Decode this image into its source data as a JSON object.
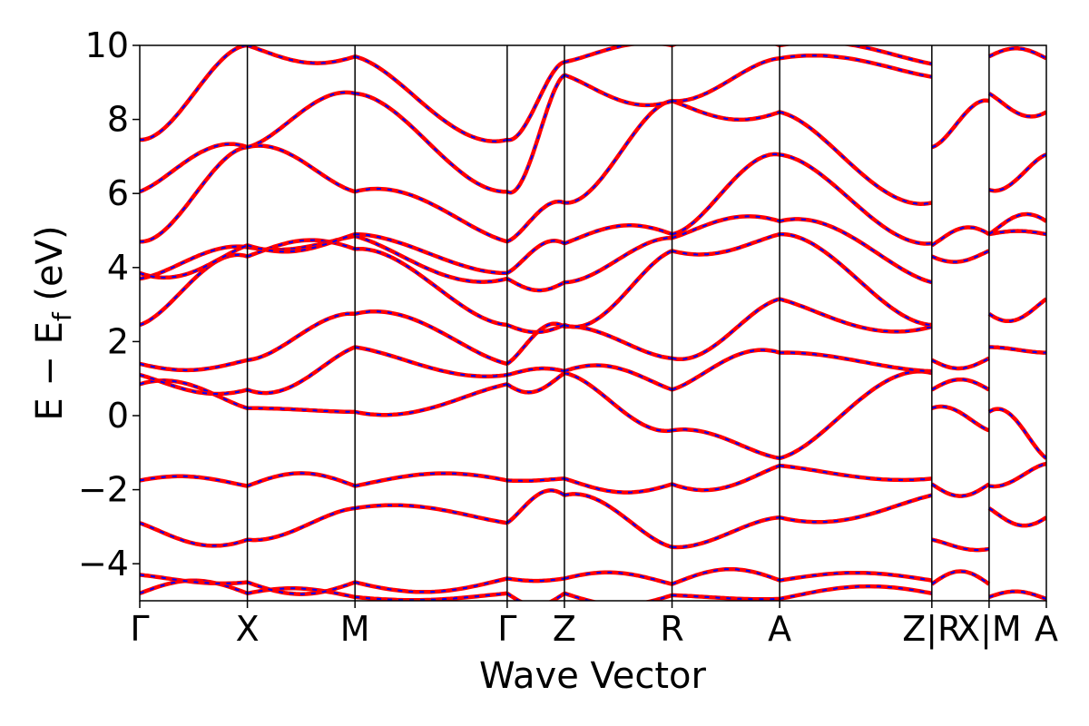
{
  "chart_data": {
    "type": "line",
    "title": "",
    "xlabel": "Wave Vector",
    "ylabel": "E − E_f (eV)",
    "ylabel_parts": {
      "main": "E − E",
      "sub": "f",
      "unit": " (eV)"
    },
    "ylim": [
      -5,
      10
    ],
    "yticks": [
      -4,
      -2,
      0,
      2,
      4,
      6,
      8,
      10
    ],
    "ytick_labels": [
      "−4",
      "−2",
      "0",
      "2",
      "4",
      "6",
      "8",
      "10"
    ],
    "grid": false,
    "legend": "none",
    "kpath": [
      {
        "label": "Γ",
        "x": 0.0
      },
      {
        "label": "X",
        "x": 0.5
      },
      {
        "label": "M",
        "x": 1.0
      },
      {
        "label": "Γ",
        "x": 1.707
      },
      {
        "label": "Z",
        "x": 1.973
      },
      {
        "label": "R",
        "x": 2.473
      },
      {
        "label": "A",
        "x": 2.973
      },
      {
        "label": "Z|R",
        "x": 3.68
      },
      {
        "label": "X|M",
        "x": 3.946
      },
      {
        "label": "A",
        "x": 4.212
      }
    ],
    "segments": [
      {
        "from": "Γ",
        "to": "X",
        "x0": 0.0,
        "x1": 0.5,
        "start": [
          -4.8,
          -4.3,
          -2.9,
          -1.75,
          0.85,
          1.1,
          1.4,
          2.45,
          3.7,
          3.85,
          4.7,
          6.05,
          7.45
        ],
        "end": [
          -4.8,
          -4.5,
          -3.35,
          -1.9,
          0.2,
          0.7,
          1.5,
          4.3,
          4.55,
          4.6,
          7.25,
          7.25,
          10.0
        ]
      },
      {
        "from": "X",
        "to": "M",
        "x0": 0.5,
        "x1": 1.0,
        "start": [
          -4.8,
          -4.5,
          -3.35,
          -1.9,
          0.2,
          0.7,
          1.5,
          4.3,
          4.55,
          4.6,
          7.25,
          7.25,
          10.0
        ],
        "end": [
          -4.9,
          -4.5,
          -2.5,
          -1.9,
          0.1,
          1.85,
          2.75,
          4.5,
          4.85,
          4.9,
          6.05,
          8.7,
          9.7
        ]
      },
      {
        "from": "M",
        "to": "Γ",
        "x0": 1.0,
        "x1": 1.707,
        "start": [
          -4.9,
          -4.5,
          -2.5,
          -1.9,
          0.1,
          1.85,
          2.75,
          4.5,
          4.85,
          4.9,
          6.05,
          8.7,
          9.7
        ],
        "end": [
          -4.8,
          -4.4,
          -2.9,
          -1.75,
          0.85,
          1.1,
          1.4,
          2.45,
          3.7,
          3.85,
          4.7,
          6.05,
          7.45
        ]
      },
      {
        "from": "Γ",
        "to": "Z",
        "x0": 1.707,
        "x1": 1.973,
        "start": [
          -4.8,
          -4.4,
          -2.9,
          -1.75,
          0.85,
          1.1,
          1.4,
          2.45,
          3.7,
          3.85,
          4.7,
          6.05,
          7.45
        ],
        "end": [
          -4.8,
          -4.4,
          -2.15,
          -1.7,
          1.15,
          1.2,
          2.4,
          2.45,
          3.6,
          4.65,
          5.75,
          9.2,
          9.55
        ]
      },
      {
        "from": "Z",
        "to": "R",
        "x0": 1.973,
        "x1": 2.473,
        "start": [
          -4.8,
          -4.4,
          -2.15,
          -1.7,
          1.15,
          1.2,
          2.4,
          2.45,
          3.6,
          4.65,
          5.75,
          9.2,
          9.55
        ],
        "end": [
          -4.85,
          -4.55,
          -3.55,
          -1.85,
          -0.4,
          0.7,
          1.55,
          4.45,
          4.8,
          4.9,
          8.5,
          8.5,
          10.0
        ]
      },
      {
        "from": "R",
        "to": "A",
        "x0": 2.473,
        "x1": 2.973,
        "start": [
          -4.85,
          -4.55,
          -3.55,
          -1.85,
          -0.4,
          0.7,
          1.55,
          4.45,
          4.8,
          4.9,
          8.5,
          8.5,
          10.0
        ],
        "end": [
          -4.95,
          -4.45,
          -2.75,
          -1.35,
          -1.15,
          1.7,
          3.15,
          4.9,
          5.25,
          7.05,
          8.2,
          9.65,
          10.0
        ]
      },
      {
        "from": "A",
        "to": "Z",
        "x0": 2.973,
        "x1": 3.68,
        "start": [
          -4.95,
          -4.45,
          -2.75,
          -1.35,
          -1.15,
          1.7,
          3.15,
          4.9,
          5.25,
          7.05,
          8.2,
          9.65,
          10.0
        ],
        "end": [
          -4.8,
          -4.45,
          -2.15,
          -1.7,
          1.15,
          1.2,
          2.4,
          2.45,
          3.6,
          4.65,
          5.75,
          9.15,
          9.5
        ]
      },
      {
        "from": "R",
        "to": "X",
        "x0": 3.68,
        "x1": 3.946,
        "start": [
          -4.55,
          -3.35,
          -1.85,
          0.2,
          0.7,
          1.5,
          4.3,
          4.6,
          7.25
        ],
        "end": [
          -4.55,
          -3.6,
          -1.85,
          -0.4,
          0.7,
          1.55,
          4.45,
          4.9,
          8.5
        ]
      },
      {
        "from": "M",
        "to": "A",
        "x0": 3.946,
        "x1": 4.212,
        "start": [
          -4.9,
          -2.5,
          -1.9,
          0.1,
          1.85,
          2.75,
          4.9,
          4.9,
          6.1,
          8.7,
          9.7
        ],
        "end": [
          -4.95,
          -2.75,
          -1.3,
          -1.15,
          1.7,
          3.15,
          4.9,
          5.25,
          7.05,
          8.2,
          9.65
        ]
      }
    ],
    "series": [
      {
        "color": "#ff0000",
        "style": "solid"
      },
      {
        "color": "#0000ff",
        "style": "dashed"
      }
    ]
  }
}
